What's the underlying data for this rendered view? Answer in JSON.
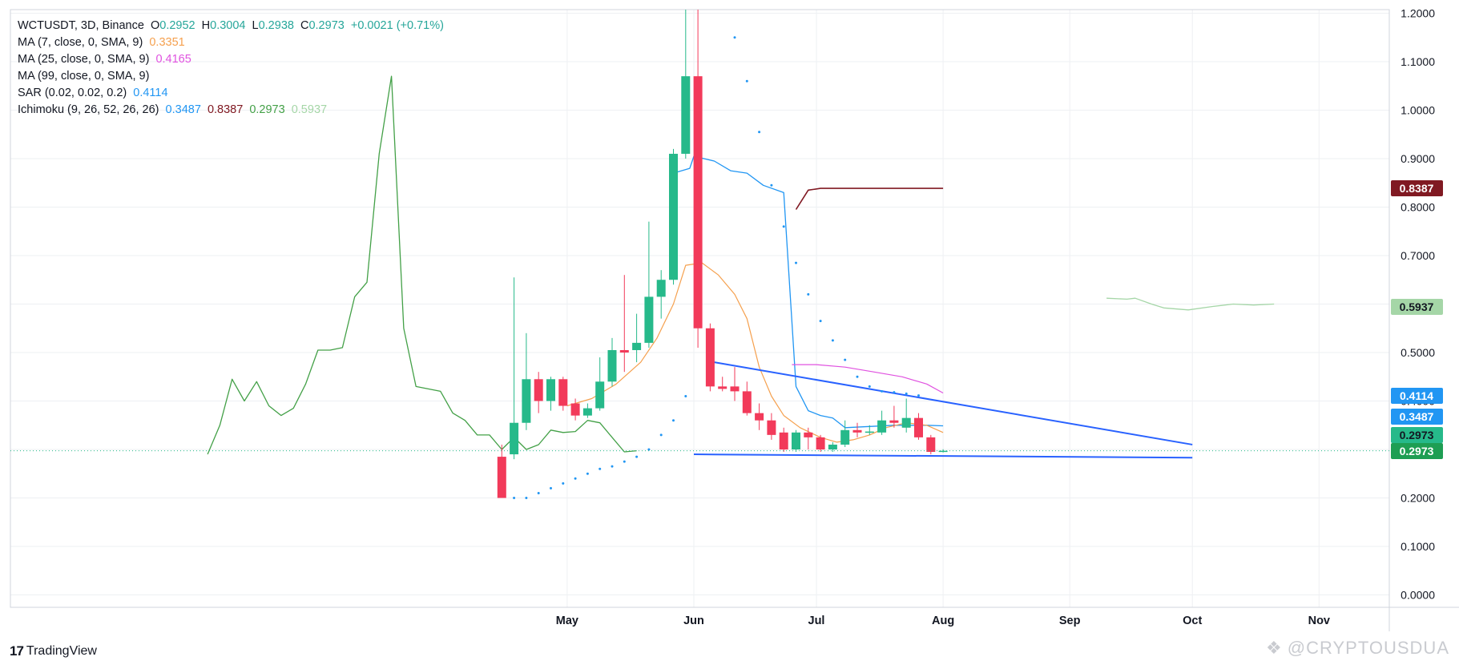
{
  "legend": {
    "symbol": "WCTUSDT, 3D, Binance",
    "ohlc": {
      "o_label": "O",
      "o": "0.2952",
      "h_label": "H",
      "h": "0.3004",
      "l_label": "L",
      "l": "0.2938",
      "c_label": "C",
      "c": "0.2973",
      "change": "+0.0021 (+0.71%)"
    },
    "ma7": {
      "label": "MA (7, close, 0, SMA, 9)",
      "value": "0.3351"
    },
    "ma25": {
      "label": "MA (25, close, 0, SMA, 9)",
      "value": "0.4165"
    },
    "ma99": {
      "label": "MA (99, close, 0, SMA, 9)"
    },
    "sar": {
      "label": "SAR (0.02, 0.02, 0.2)",
      "value": "0.4114"
    },
    "ichimoku": {
      "label": "Ichimoku (9, 26, 52, 26, 26)",
      "v1": "0.3487",
      "v2": "0.8387",
      "v3": "0.2973",
      "v4": "0.5937"
    }
  },
  "colors": {
    "up": "#26b98a",
    "down": "#f23a5a",
    "ma7": "#f5a04e",
    "ma25": "#e052e0",
    "sar": "#2196f3",
    "tenkan": "#2196f3",
    "kijun": "#801922",
    "chikou": "#43a047",
    "span_b": "#a5d6a7",
    "trendline": "#2962ff",
    "grid": "#eef0f3"
  },
  "badges": [
    {
      "value": "0.8387",
      "bg": "#801922",
      "fg": "#ffffff"
    },
    {
      "value": "0.5937",
      "bg": "#a5d6a7",
      "fg": "#131722"
    },
    {
      "value": "0.4114",
      "bg": "#2196f3",
      "fg": "#ffffff"
    },
    {
      "value": "0.3487",
      "bg": "#2196f3",
      "fg": "#ffffff"
    },
    {
      "value": "0.2973",
      "bg": "#26b98a",
      "fg": "#131722"
    },
    {
      "value": "0.2973",
      "bg": "#1e9e53",
      "fg": "#ffffff"
    }
  ],
  "brand": {
    "name": "TradingView",
    "logo": "17"
  },
  "watermark": {
    "text": "@CRYPTOUSDUA"
  },
  "chart_data": {
    "type": "candlestick",
    "title": "WCTUSDT, 3D, Binance",
    "y_ticks": [
      "1.2000",
      "1.1000",
      "1.0000",
      "0.9000",
      "0.8000",
      "0.7000",
      "0.6000",
      "0.5000",
      "0.4000",
      "0.3000",
      "0.2000",
      "0.1000",
      "0.0000"
    ],
    "ylim": [
      -0.02,
      1.23
    ],
    "x_ticks": [
      {
        "label": "May",
        "date": "2025-05-01"
      },
      {
        "label": "Jun",
        "date": "2025-06-01"
      },
      {
        "label": "Jul",
        "date": "2025-07-01"
      },
      {
        "label": "Aug",
        "date": "2025-08-01"
      },
      {
        "label": "Sep",
        "date": "2025-09-01"
      },
      {
        "label": "Oct",
        "date": "2025-10-01"
      },
      {
        "label": "Nov",
        "date": "2025-11-01"
      }
    ],
    "candles": [
      {
        "date": "2025-04-15",
        "o": 0.285,
        "h": 0.31,
        "l": 0.2,
        "c": 0.2
      },
      {
        "date": "2025-04-18",
        "o": 0.29,
        "h": 0.655,
        "l": 0.28,
        "c": 0.355
      },
      {
        "date": "2025-04-21",
        "o": 0.355,
        "h": 0.54,
        "l": 0.34,
        "c": 0.445
      },
      {
        "date": "2025-04-24",
        "o": 0.445,
        "h": 0.46,
        "l": 0.375,
        "c": 0.4
      },
      {
        "date": "2025-04-27",
        "o": 0.4,
        "h": 0.45,
        "l": 0.38,
        "c": 0.445
      },
      {
        "date": "2025-04-30",
        "o": 0.445,
        "h": 0.45,
        "l": 0.38,
        "c": 0.39
      },
      {
        "date": "2025-05-03",
        "o": 0.395,
        "h": 0.405,
        "l": 0.36,
        "c": 0.37
      },
      {
        "date": "2025-05-06",
        "o": 0.37,
        "h": 0.395,
        "l": 0.365,
        "c": 0.385
      },
      {
        "date": "2025-05-09",
        "o": 0.385,
        "h": 0.49,
        "l": 0.38,
        "c": 0.44
      },
      {
        "date": "2025-05-12",
        "o": 0.44,
        "h": 0.53,
        "l": 0.43,
        "c": 0.505
      },
      {
        "date": "2025-05-15",
        "o": 0.505,
        "h": 0.66,
        "l": 0.46,
        "c": 0.5
      },
      {
        "date": "2025-05-18",
        "o": 0.505,
        "h": 0.58,
        "l": 0.48,
        "c": 0.52
      },
      {
        "date": "2025-05-21",
        "o": 0.52,
        "h": 0.77,
        "l": 0.51,
        "c": 0.615
      },
      {
        "date": "2025-05-24",
        "o": 0.615,
        "h": 0.67,
        "l": 0.57,
        "c": 0.65
      },
      {
        "date": "2025-05-27",
        "o": 0.65,
        "h": 0.92,
        "l": 0.64,
        "c": 0.91
      },
      {
        "date": "2025-05-30",
        "o": 0.91,
        "h": 1.22,
        "l": 0.9,
        "c": 1.07
      },
      {
        "date": "2025-06-02",
        "o": 1.07,
        "h": 1.22,
        "l": 0.51,
        "c": 0.55
      },
      {
        "date": "2025-06-05",
        "o": 0.55,
        "h": 0.56,
        "l": 0.42,
        "c": 0.43
      },
      {
        "date": "2025-06-08",
        "o": 0.43,
        "h": 0.45,
        "l": 0.42,
        "c": 0.425
      },
      {
        "date": "2025-06-11",
        "o": 0.43,
        "h": 0.47,
        "l": 0.4,
        "c": 0.42
      },
      {
        "date": "2025-06-14",
        "o": 0.42,
        "h": 0.44,
        "l": 0.37,
        "c": 0.375
      },
      {
        "date": "2025-06-17",
        "o": 0.375,
        "h": 0.395,
        "l": 0.34,
        "c": 0.36
      },
      {
        "date": "2025-06-20",
        "o": 0.36,
        "h": 0.375,
        "l": 0.32,
        "c": 0.33
      },
      {
        "date": "2025-06-23",
        "o": 0.335,
        "h": 0.345,
        "l": 0.295,
        "c": 0.3
      },
      {
        "date": "2025-06-26",
        "o": 0.3,
        "h": 0.34,
        "l": 0.295,
        "c": 0.335
      },
      {
        "date": "2025-06-29",
        "o": 0.335,
        "h": 0.345,
        "l": 0.3,
        "c": 0.325
      },
      {
        "date": "2025-07-02",
        "o": 0.325,
        "h": 0.33,
        "l": 0.295,
        "c": 0.3
      },
      {
        "date": "2025-07-05",
        "o": 0.3,
        "h": 0.315,
        "l": 0.295,
        "c": 0.31
      },
      {
        "date": "2025-07-08",
        "o": 0.31,
        "h": 0.36,
        "l": 0.305,
        "c": 0.34
      },
      {
        "date": "2025-07-11",
        "o": 0.34,
        "h": 0.355,
        "l": 0.325,
        "c": 0.335
      },
      {
        "date": "2025-07-14",
        "o": 0.335,
        "h": 0.35,
        "l": 0.33,
        "c": 0.337
      },
      {
        "date": "2025-07-17",
        "o": 0.335,
        "h": 0.38,
        "l": 0.33,
        "c": 0.36
      },
      {
        "date": "2025-07-20",
        "o": 0.36,
        "h": 0.39,
        "l": 0.345,
        "c": 0.355
      },
      {
        "date": "2025-07-23",
        "o": 0.345,
        "h": 0.405,
        "l": 0.335,
        "c": 0.365
      },
      {
        "date": "2025-07-26",
        "o": 0.365,
        "h": 0.375,
        "l": 0.32,
        "c": 0.325
      },
      {
        "date": "2025-07-29",
        "o": 0.325,
        "h": 0.33,
        "l": 0.29,
        "c": 0.295
      },
      {
        "date": "2025-08-01",
        "o": 0.2952,
        "h": 0.3004,
        "l": 0.2938,
        "c": 0.2973
      }
    ],
    "ma7": [
      [
        "2025-05-01",
        0.39
      ],
      [
        "2025-05-07",
        0.405
      ],
      [
        "2025-05-13",
        0.435
      ],
      [
        "2025-05-19",
        0.48
      ],
      [
        "2025-05-23",
        0.53
      ],
      [
        "2025-05-27",
        0.6
      ],
      [
        "2025-05-30",
        0.68
      ],
      [
        "2025-06-03",
        0.685
      ],
      [
        "2025-06-07",
        0.66
      ],
      [
        "2025-06-11",
        0.62
      ],
      [
        "2025-06-14",
        0.57
      ],
      [
        "2025-06-17",
        0.47
      ],
      [
        "2025-06-20",
        0.41
      ],
      [
        "2025-06-23",
        0.37
      ],
      [
        "2025-06-27",
        0.345
      ],
      [
        "2025-07-02",
        0.325
      ],
      [
        "2025-07-06",
        0.315
      ],
      [
        "2025-07-10",
        0.32
      ],
      [
        "2025-07-14",
        0.33
      ],
      [
        "2025-07-18",
        0.345
      ],
      [
        "2025-07-23",
        0.355
      ],
      [
        "2025-07-28",
        0.35
      ],
      [
        "2025-08-01",
        0.335
      ]
    ],
    "ma25": [
      [
        "2025-06-25",
        0.475
      ],
      [
        "2025-07-01",
        0.475
      ],
      [
        "2025-07-08",
        0.47
      ],
      [
        "2025-07-15",
        0.46
      ],
      [
        "2025-07-22",
        0.45
      ],
      [
        "2025-07-28",
        0.435
      ],
      [
        "2025-08-01",
        0.4165
      ]
    ],
    "sar": [
      [
        "2025-04-18",
        0.2
      ],
      [
        "2025-04-21",
        0.2
      ],
      [
        "2025-04-24",
        0.21
      ],
      [
        "2025-04-27",
        0.22
      ],
      [
        "2025-04-30",
        0.23
      ],
      [
        "2025-05-03",
        0.24
      ],
      [
        "2025-05-06",
        0.25
      ],
      [
        "2025-05-09",
        0.26
      ],
      [
        "2025-05-12",
        0.265
      ],
      [
        "2025-05-15",
        0.275
      ],
      [
        "2025-05-18",
        0.285
      ],
      [
        "2025-05-21",
        0.3
      ],
      [
        "2025-05-24",
        0.33
      ],
      [
        "2025-05-27",
        0.36
      ],
      [
        "2025-05-30",
        0.41
      ],
      [
        "2025-06-11",
        1.15
      ],
      [
        "2025-06-14",
        1.06
      ],
      [
        "2025-06-17",
        0.955
      ],
      [
        "2025-06-20",
        0.845
      ],
      [
        "2025-06-23",
        0.76
      ],
      [
        "2025-06-26",
        0.685
      ],
      [
        "2025-06-29",
        0.62
      ],
      [
        "2025-07-02",
        0.565
      ],
      [
        "2025-07-05",
        0.525
      ],
      [
        "2025-07-08",
        0.485
      ],
      [
        "2025-07-11",
        0.45
      ],
      [
        "2025-07-14",
        0.43
      ],
      [
        "2025-07-17",
        0.42
      ],
      [
        "2025-07-20",
        0.418
      ],
      [
        "2025-07-23",
        0.415
      ],
      [
        "2025-07-26",
        0.4114
      ]
    ],
    "tenkan": [
      [
        "2025-05-27",
        0.87
      ],
      [
        "2025-05-31",
        0.88
      ],
      [
        "2025-06-01",
        0.905
      ],
      [
        "2025-06-06",
        0.895
      ],
      [
        "2025-06-10",
        0.875
      ],
      [
        "2025-06-14",
        0.87
      ],
      [
        "2025-06-18",
        0.845
      ],
      [
        "2025-06-23",
        0.83
      ],
      [
        "2025-06-26",
        0.43
      ],
      [
        "2025-06-29",
        0.38
      ],
      [
        "2025-07-02",
        0.37
      ],
      [
        "2025-07-05",
        0.365
      ],
      [
        "2025-07-08",
        0.345
      ],
      [
        "2025-07-20",
        0.35
      ],
      [
        "2025-07-28",
        0.35
      ],
      [
        "2025-08-01",
        0.3487
      ]
    ],
    "kijun": [
      [
        "2025-06-26",
        0.795
      ],
      [
        "2025-06-29",
        0.835
      ],
      [
        "2025-07-02",
        0.8387
      ],
      [
        "2025-07-20",
        0.8387
      ],
      [
        "2025-08-01",
        0.8387
      ]
    ],
    "chikou": [
      [
        "2025-02-02",
        0.29
      ],
      [
        "2025-02-05",
        0.35
      ],
      [
        "2025-02-08",
        0.445
      ],
      [
        "2025-02-11",
        0.4
      ],
      [
        "2025-02-14",
        0.44
      ],
      [
        "2025-02-17",
        0.39
      ],
      [
        "2025-02-20",
        0.37
      ],
      [
        "2025-02-23",
        0.385
      ],
      [
        "2025-02-26",
        0.435
      ],
      [
        "2025-03-01",
        0.505
      ],
      [
        "2025-03-04",
        0.505
      ],
      [
        "2025-03-07",
        0.51
      ],
      [
        "2025-03-10",
        0.615
      ],
      [
        "2025-03-13",
        0.645
      ],
      [
        "2025-03-16",
        0.91
      ],
      [
        "2025-03-19",
        1.07
      ],
      [
        "2025-03-22",
        0.55
      ],
      [
        "2025-03-25",
        0.43
      ],
      [
        "2025-03-28",
        0.425
      ],
      [
        "2025-03-31",
        0.42
      ],
      [
        "2025-04-03",
        0.375
      ],
      [
        "2025-04-06",
        0.36
      ],
      [
        "2025-04-09",
        0.33
      ],
      [
        "2025-04-12",
        0.33
      ],
      [
        "2025-04-15",
        0.3
      ],
      [
        "2025-04-18",
        0.325
      ],
      [
        "2025-04-21",
        0.3
      ],
      [
        "2025-04-24",
        0.31
      ],
      [
        "2025-04-27",
        0.34
      ],
      [
        "2025-04-30",
        0.335
      ],
      [
        "2025-05-03",
        0.337
      ],
      [
        "2025-05-06",
        0.36
      ],
      [
        "2025-05-09",
        0.355
      ],
      [
        "2025-05-12",
        0.325
      ],
      [
        "2025-05-15",
        0.295
      ],
      [
        "2025-05-18",
        0.2973
      ]
    ],
    "span_b": [
      [
        "2025-09-10",
        0.612
      ],
      [
        "2025-09-15",
        0.61
      ],
      [
        "2025-09-17",
        0.612
      ],
      [
        "2025-09-21",
        0.6
      ],
      [
        "2025-09-24",
        0.592
      ],
      [
        "2025-09-30",
        0.588
      ],
      [
        "2025-10-06",
        0.595
      ],
      [
        "2025-10-11",
        0.6
      ],
      [
        "2025-10-16",
        0.598
      ],
      [
        "2025-10-21",
        0.6
      ]
    ],
    "trendlines": [
      {
        "from": [
          "2025-06-06",
          0.48
        ],
        "to": [
          "2025-10-01",
          0.31
        ]
      },
      {
        "from": [
          "2025-06-01",
          0.29
        ],
        "to": [
          "2025-10-01",
          0.283
        ]
      }
    ],
    "last_price": 0.2973
  }
}
